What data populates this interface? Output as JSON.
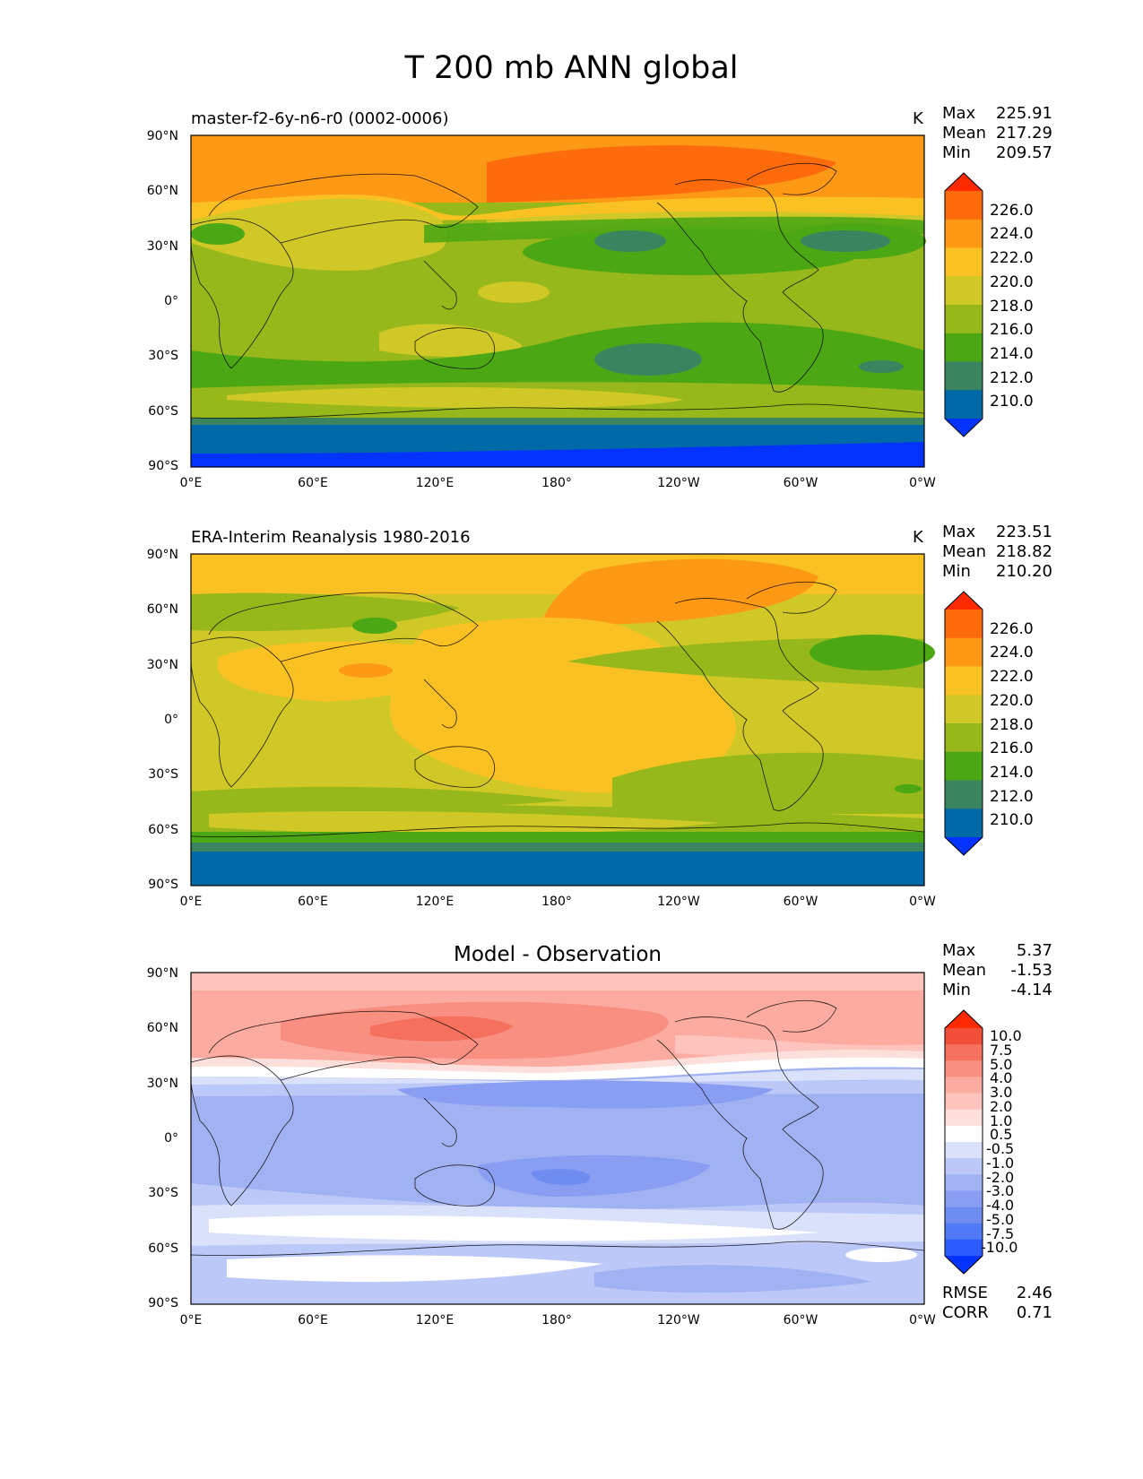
{
  "title": "T 200 mb ANN global",
  "lat_ticks": [
    "90°N",
    "60°N",
    "30°N",
    "0°",
    "30°S",
    "60°S",
    "90°S"
  ],
  "lon_ticks": [
    "0°E",
    "60°E",
    "120°E",
    "180°",
    "120°W",
    "60°W",
    "0°W"
  ],
  "colors": {
    "temp_levels": [
      "#0433ff",
      "#0069a8",
      "#3a8560",
      "#4ca715",
      "#97b81b",
      "#cfc827",
      "#fac123",
      "#fd9915",
      "#fe6b0d",
      "#ff2a00"
    ],
    "diff_levels": [
      "#0433ff",
      "#2c5bff",
      "#5079f5",
      "#6f8cf0",
      "#899ef2",
      "#a1b2f3",
      "#bcc8f7",
      "#dae2fb",
      "#ffffff",
      "#fde0dc",
      "#fcc4bc",
      "#fbaba0",
      "#f98f80",
      "#f6705e",
      "#f24f3b",
      "#ff2a00"
    ]
  },
  "panels": [
    {
      "label": "master-f2-6y-n6-r0 (0002-0006)",
      "units": "K",
      "stats": {
        "max_label": "Max",
        "max": "225.91",
        "mean_label": "Mean",
        "mean": "217.29",
        "min_label": "Min",
        "min": "209.57"
      },
      "colorbar_labels": [
        "226.0",
        "224.0",
        "222.0",
        "220.0",
        "218.0",
        "216.0",
        "214.0",
        "212.0",
        "210.0"
      ]
    },
    {
      "label": "ERA-Interim Reanalysis 1980-2016",
      "units": "K",
      "stats": {
        "max_label": "Max",
        "max": "223.51",
        "mean_label": "Mean",
        "mean": "218.82",
        "min_label": "Min",
        "min": "210.20"
      },
      "colorbar_labels": [
        "226.0",
        "224.0",
        "222.0",
        "220.0",
        "218.0",
        "216.0",
        "214.0",
        "212.0",
        "210.0"
      ]
    },
    {
      "title": "Model - Observation",
      "stats": {
        "max_label": "Max",
        "max": "5.37",
        "mean_label": "Mean",
        "mean": "-1.53",
        "min_label": "Min",
        "min": "-4.14"
      },
      "colorbar_labels": [
        "10.0",
        "7.5",
        "5.0",
        "4.0",
        "3.0",
        "2.0",
        "1.0",
        "0.5",
        "-0.5",
        "-1.0",
        "-2.0",
        "-3.0",
        "-4.0",
        "-5.0",
        "-7.5",
        "-10.0"
      ],
      "metrics": {
        "rmse_label": "RMSE",
        "rmse": "2.46",
        "corr_label": "CORR",
        "corr": "0.71"
      }
    }
  ]
}
